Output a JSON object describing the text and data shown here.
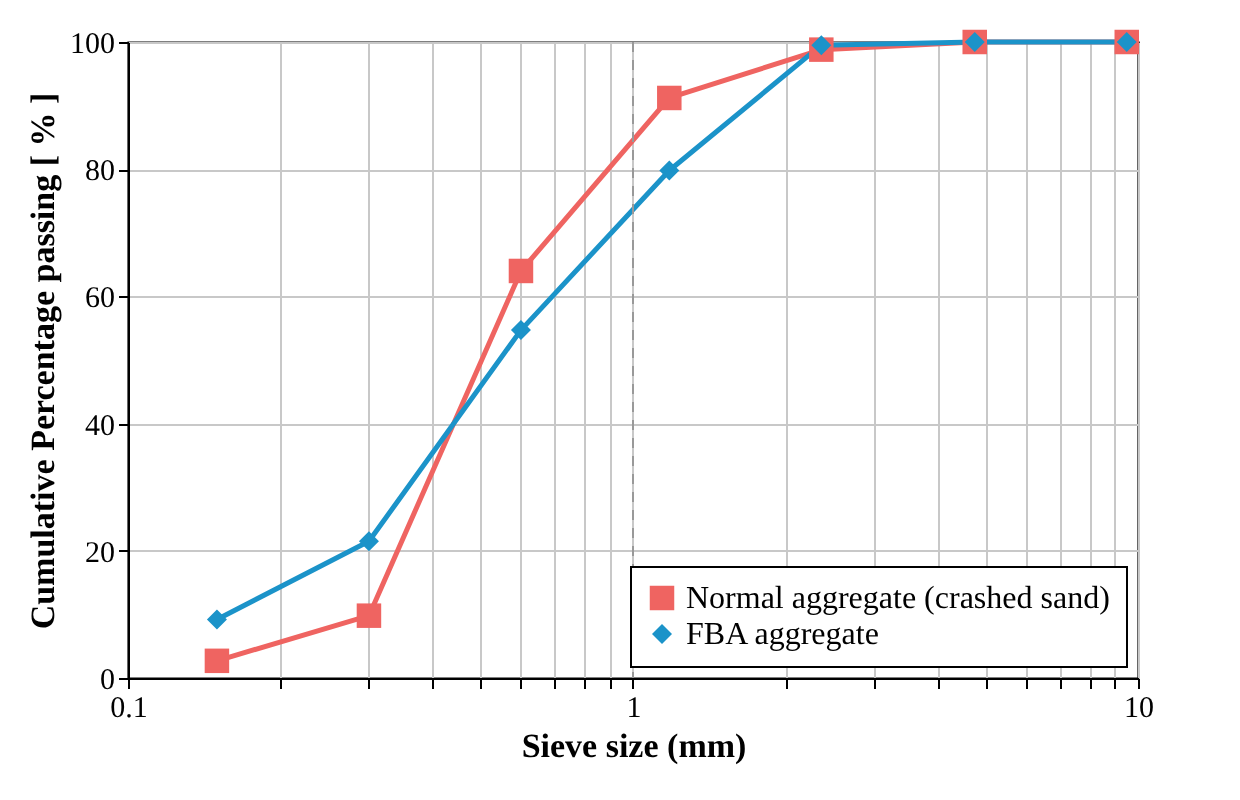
{
  "chart_data": {
    "type": "line",
    "xlabel": "Sieve size (mm)",
    "ylabel": "Cumulative Percentage passing [ % ]",
    "x": [
      0.15,
      0.3,
      0.6,
      1.18,
      2.36,
      4.75,
      9.5
    ],
    "series": [
      {
        "name": "Normal aggregate (crashed sand)",
        "color": "#ef6461",
        "marker": "square",
        "values": [
          2.7,
          9.8,
          64,
          91.2,
          98.8,
          100,
          100
        ]
      },
      {
        "name": "FBA aggregate",
        "color": "#1b93c9",
        "marker": "diamond",
        "values": [
          9.2,
          21.5,
          54.7,
          79.8,
          99.5,
          100,
          100
        ]
      }
    ],
    "log": "x",
    "xlim": [
      0.1,
      10
    ],
    "xticks": [
      0.1,
      {
        "value": 0.2,
        "label": null
      },
      {
        "value": 0.3,
        "label": null
      },
      {
        "value": 0.4,
        "label": null
      },
      {
        "value": 0.5,
        "label": null
      },
      {
        "value": 0.6,
        "label": null
      },
      {
        "value": 0.7,
        "label": null
      },
      {
        "value": 0.8,
        "label": null
      },
      {
        "value": 0.9,
        "label": null
      },
      1,
      {
        "value": 2,
        "label": null
      },
      {
        "value": 3,
        "label": null
      },
      {
        "value": 4,
        "label": null
      },
      {
        "value": 5,
        "label": null
      },
      {
        "value": 6,
        "label": null
      },
      {
        "value": 7,
        "label": null
      },
      {
        "value": 8,
        "label": null
      },
      {
        "value": 9,
        "label": null
      },
      10
    ],
    "ylim": [
      0,
      100
    ],
    "yticks": [
      0,
      20,
      40,
      60,
      80,
      100
    ],
    "grid": true,
    "legend": "bottom right",
    "ref_lines": [
      {
        "axis": "x",
        "value": 1,
        "line_style": "dashed",
        "color": "#999999"
      }
    ]
  }
}
